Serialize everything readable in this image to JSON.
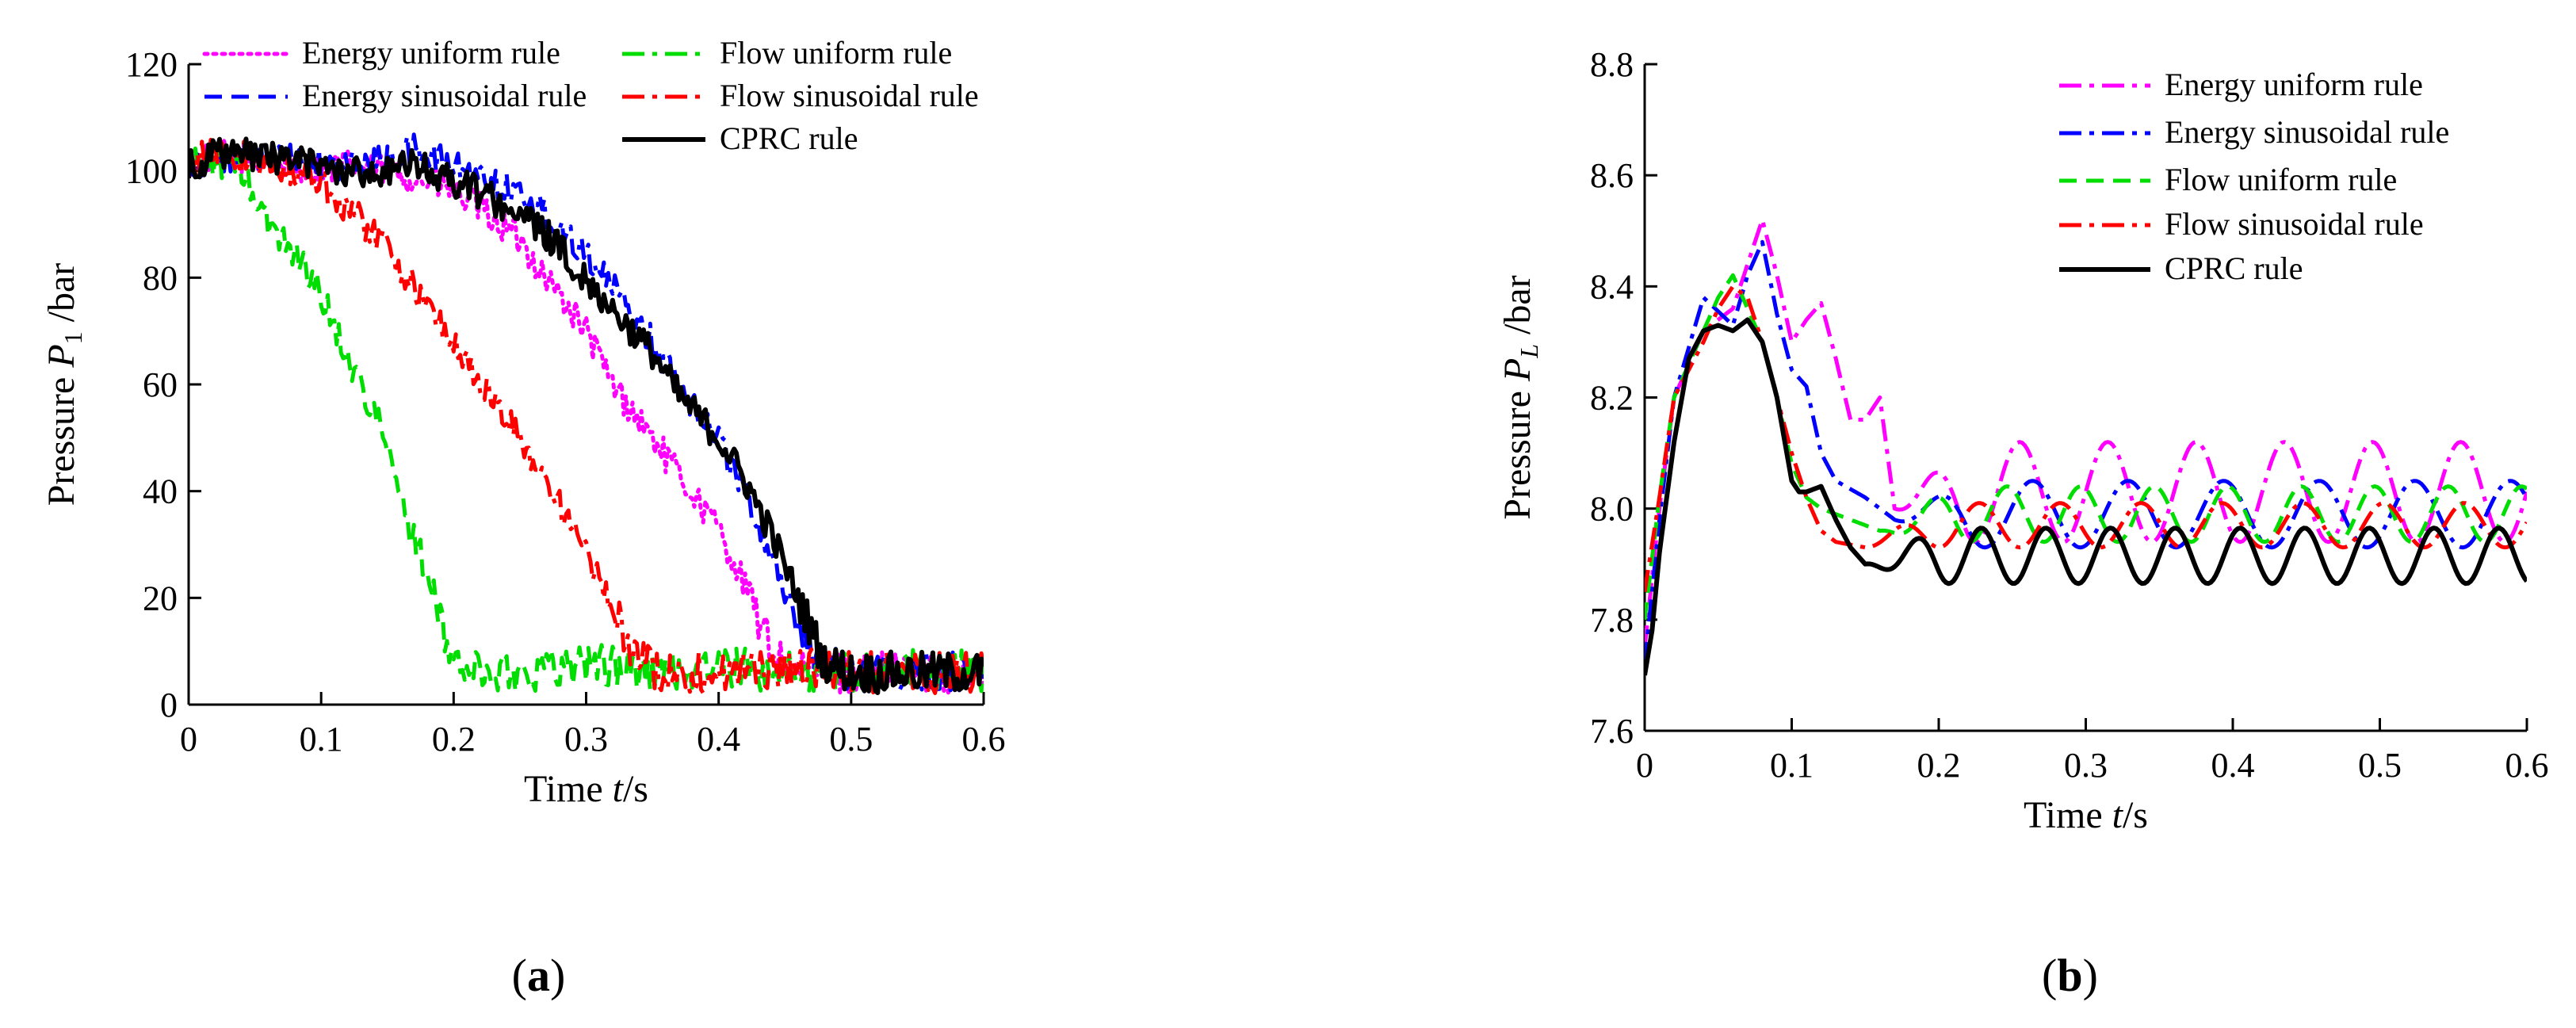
{
  "chart_data": [
    {
      "type": "line",
      "panel": "(a)",
      "panel_letter": "a",
      "xlabel": "Time  t/s",
      "xlabel_parts": {
        "word": "Time",
        "sym": "t",
        "unit": "/s"
      },
      "ylabel": "Pressure  P1 /bar",
      "ylabel_parts": {
        "word": "Pressure",
        "sym": "P",
        "sub": "1",
        "unit": "/bar"
      },
      "xlim": [
        0,
        0.6
      ],
      "ylim": [
        0,
        120
      ],
      "xticks": [
        "0",
        "0.1",
        "0.2",
        "0.3",
        "0.4",
        "0.5",
        "0.6"
      ],
      "yticks": [
        "0",
        "20",
        "40",
        "60",
        "80",
        "100",
        "120"
      ],
      "grid": false,
      "legend_position": "top",
      "series": [
        {
          "name": "Energy uniform rule",
          "color": "#ff00ff",
          "dash": "dotted",
          "x": [
            0,
            0.02,
            0.05,
            0.08,
            0.1,
            0.12,
            0.15,
            0.18,
            0.2,
            0.22,
            0.25,
            0.27,
            0.3,
            0.32,
            0.35,
            0.37,
            0.4,
            0.42,
            0.44,
            0.46,
            0.5,
            0.55,
            0.6
          ],
          "y": [
            101,
            103,
            102,
            101,
            100,
            101,
            100,
            98,
            96,
            93,
            87,
            80,
            70,
            60,
            50,
            43,
            33,
            22,
            10,
            6,
            6,
            6,
            6
          ]
        },
        {
          "name": "Energy sinusoidal rule",
          "color": "#0000ff",
          "dash": "dashdot",
          "x": [
            0,
            0.02,
            0.05,
            0.08,
            0.1,
            0.12,
            0.15,
            0.17,
            0.2,
            0.22,
            0.25,
            0.27,
            0.3,
            0.32,
            0.35,
            0.37,
            0.4,
            0.42,
            0.44,
            0.46,
            0.48,
            0.5,
            0.55,
            0.6
          ],
          "y": [
            101,
            103,
            102,
            102,
            101,
            101,
            102,
            104,
            101,
            99,
            96,
            92,
            85,
            78,
            68,
            60,
            50,
            40,
            28,
            15,
            7,
            6,
            6,
            6
          ]
        },
        {
          "name": "Flow uniform rule",
          "color": "#00dd00",
          "dash": "dashed",
          "x": [
            0,
            0.02,
            0.04,
            0.06,
            0.08,
            0.1,
            0.12,
            0.14,
            0.15,
            0.16,
            0.18,
            0.19,
            0.2,
            0.22,
            0.25,
            0.3,
            0.35,
            0.4,
            0.45,
            0.5,
            0.55,
            0.6
          ],
          "y": [
            101,
            102,
            100,
            90,
            85,
            77,
            65,
            55,
            48,
            38,
            25,
            15,
            8,
            6,
            6,
            8,
            6,
            7,
            6,
            6,
            7,
            6
          ]
        },
        {
          "name": "Flow sinusoidal rule",
          "color": "#ff0000",
          "dash": "dashdot",
          "x": [
            0,
            0.02,
            0.05,
            0.08,
            0.1,
            0.12,
            0.15,
            0.17,
            0.2,
            0.22,
            0.25,
            0.27,
            0.3,
            0.32,
            0.34,
            0.36,
            0.4,
            0.45,
            0.5,
            0.55,
            0.6
          ],
          "y": [
            101,
            104,
            102,
            100,
            98,
            93,
            86,
            78,
            68,
            60,
            50,
            42,
            28,
            18,
            8,
            6,
            6,
            7,
            6,
            6,
            6
          ]
        },
        {
          "name": "CPRC rule",
          "color": "#000000",
          "dash": "solid",
          "x": [
            0,
            0.02,
            0.05,
            0.08,
            0.1,
            0.12,
            0.15,
            0.17,
            0.2,
            0.22,
            0.25,
            0.27,
            0.3,
            0.32,
            0.35,
            0.37,
            0.4,
            0.42,
            0.44,
            0.46,
            0.48,
            0.5,
            0.55,
            0.6
          ],
          "y": [
            101,
            103,
            103,
            102,
            101,
            100,
            100,
            101,
            98,
            96,
            92,
            88,
            80,
            74,
            66,
            58,
            50,
            42,
            32,
            20,
            8,
            6,
            6,
            6
          ]
        }
      ]
    },
    {
      "type": "line",
      "panel": "(b)",
      "panel_letter": "b",
      "xlabel": "Time  t/s",
      "xlabel_parts": {
        "word": "Time",
        "sym": "t",
        "unit": "/s"
      },
      "ylabel": "Pressure  PL /bar",
      "ylabel_parts": {
        "word": "Pressure",
        "sym": "P",
        "sub": "L",
        "unit": "/bar"
      },
      "xlim": [
        0,
        0.6
      ],
      "ylim": [
        7.6,
        8.8
      ],
      "xticks": [
        "0",
        "0.1",
        "0.2",
        "0.3",
        "0.4",
        "0.5",
        "0.6"
      ],
      "yticks": [
        "7.6",
        "7.8",
        "8.0",
        "8.2",
        "8.4",
        "8.6",
        "8.8"
      ],
      "grid": false,
      "legend_position": "top-right",
      "series": [
        {
          "name": "Energy uniform rule",
          "color": "#ff00ff",
          "dash": "dashdot",
          "base": 8.03,
          "amp": 0.09,
          "period": 0.06,
          "phase": 0.0,
          "x": [
            0,
            0.01,
            0.02,
            0.04,
            0.06,
            0.08,
            0.09,
            0.1,
            0.11,
            0.12,
            0.13,
            0.14,
            0.15,
            0.16,
            0.17
          ],
          "y": [
            7.75,
            8.0,
            8.2,
            8.32,
            8.36,
            8.52,
            8.42,
            8.3,
            8.34,
            8.37,
            8.27,
            8.16,
            8.16,
            8.2,
            8.0
          ]
        },
        {
          "name": "Energy sinusoidal rule",
          "color": "#0000ff",
          "dash": "dashdot",
          "base": 7.99,
          "amp": 0.06,
          "period": 0.065,
          "phase": 1.2,
          "x": [
            0,
            0.01,
            0.02,
            0.04,
            0.06,
            0.07,
            0.08,
            0.09,
            0.1,
            0.11,
            0.12,
            0.13,
            0.15,
            0.17
          ],
          "y": [
            7.72,
            7.98,
            8.2,
            8.38,
            8.33,
            8.42,
            8.48,
            8.35,
            8.25,
            8.22,
            8.1,
            8.05,
            8.02,
            7.98
          ]
        },
        {
          "name": "Flow uniform rule",
          "color": "#00dd00",
          "dash": "dashed",
          "base": 7.99,
          "amp": 0.05,
          "period": 0.05,
          "phase": 2.0,
          "x": [
            0,
            0.01,
            0.02,
            0.04,
            0.05,
            0.06,
            0.07,
            0.08,
            0.09,
            0.1,
            0.11,
            0.12,
            0.14,
            0.16
          ],
          "y": [
            7.8,
            8.02,
            8.2,
            8.32,
            8.38,
            8.42,
            8.36,
            8.3,
            8.2,
            8.08,
            8.02,
            8.0,
            7.98,
            7.96
          ]
        },
        {
          "name": "Flow sinusoidal rule",
          "color": "#ff0000",
          "dash": "dashdot",
          "base": 7.97,
          "amp": 0.04,
          "period": 0.055,
          "phase": 0.7,
          "x": [
            0,
            0.01,
            0.02,
            0.04,
            0.05,
            0.06,
            0.07,
            0.08,
            0.09,
            0.1,
            0.11,
            0.12,
            0.13,
            0.15
          ],
          "y": [
            7.85,
            8.02,
            8.2,
            8.3,
            8.36,
            8.4,
            8.38,
            8.3,
            8.2,
            8.1,
            8.02,
            7.96,
            7.94,
            7.93
          ]
        },
        {
          "name": "CPRC rule",
          "color": "#000000",
          "dash": "solid",
          "base": 7.915,
          "amp": 0.05,
          "period": 0.044,
          "phase": 0.3,
          "x": [
            0,
            0.005,
            0.01,
            0.02,
            0.03,
            0.04,
            0.05,
            0.06,
            0.07,
            0.08,
            0.09,
            0.1,
            0.105,
            0.11,
            0.12,
            0.13,
            0.14,
            0.15
          ],
          "y": [
            7.7,
            7.78,
            7.92,
            8.12,
            8.27,
            8.32,
            8.33,
            8.32,
            8.34,
            8.3,
            8.2,
            8.05,
            8.03,
            8.03,
            8.04,
            7.98,
            7.93,
            7.9
          ]
        }
      ]
    }
  ]
}
